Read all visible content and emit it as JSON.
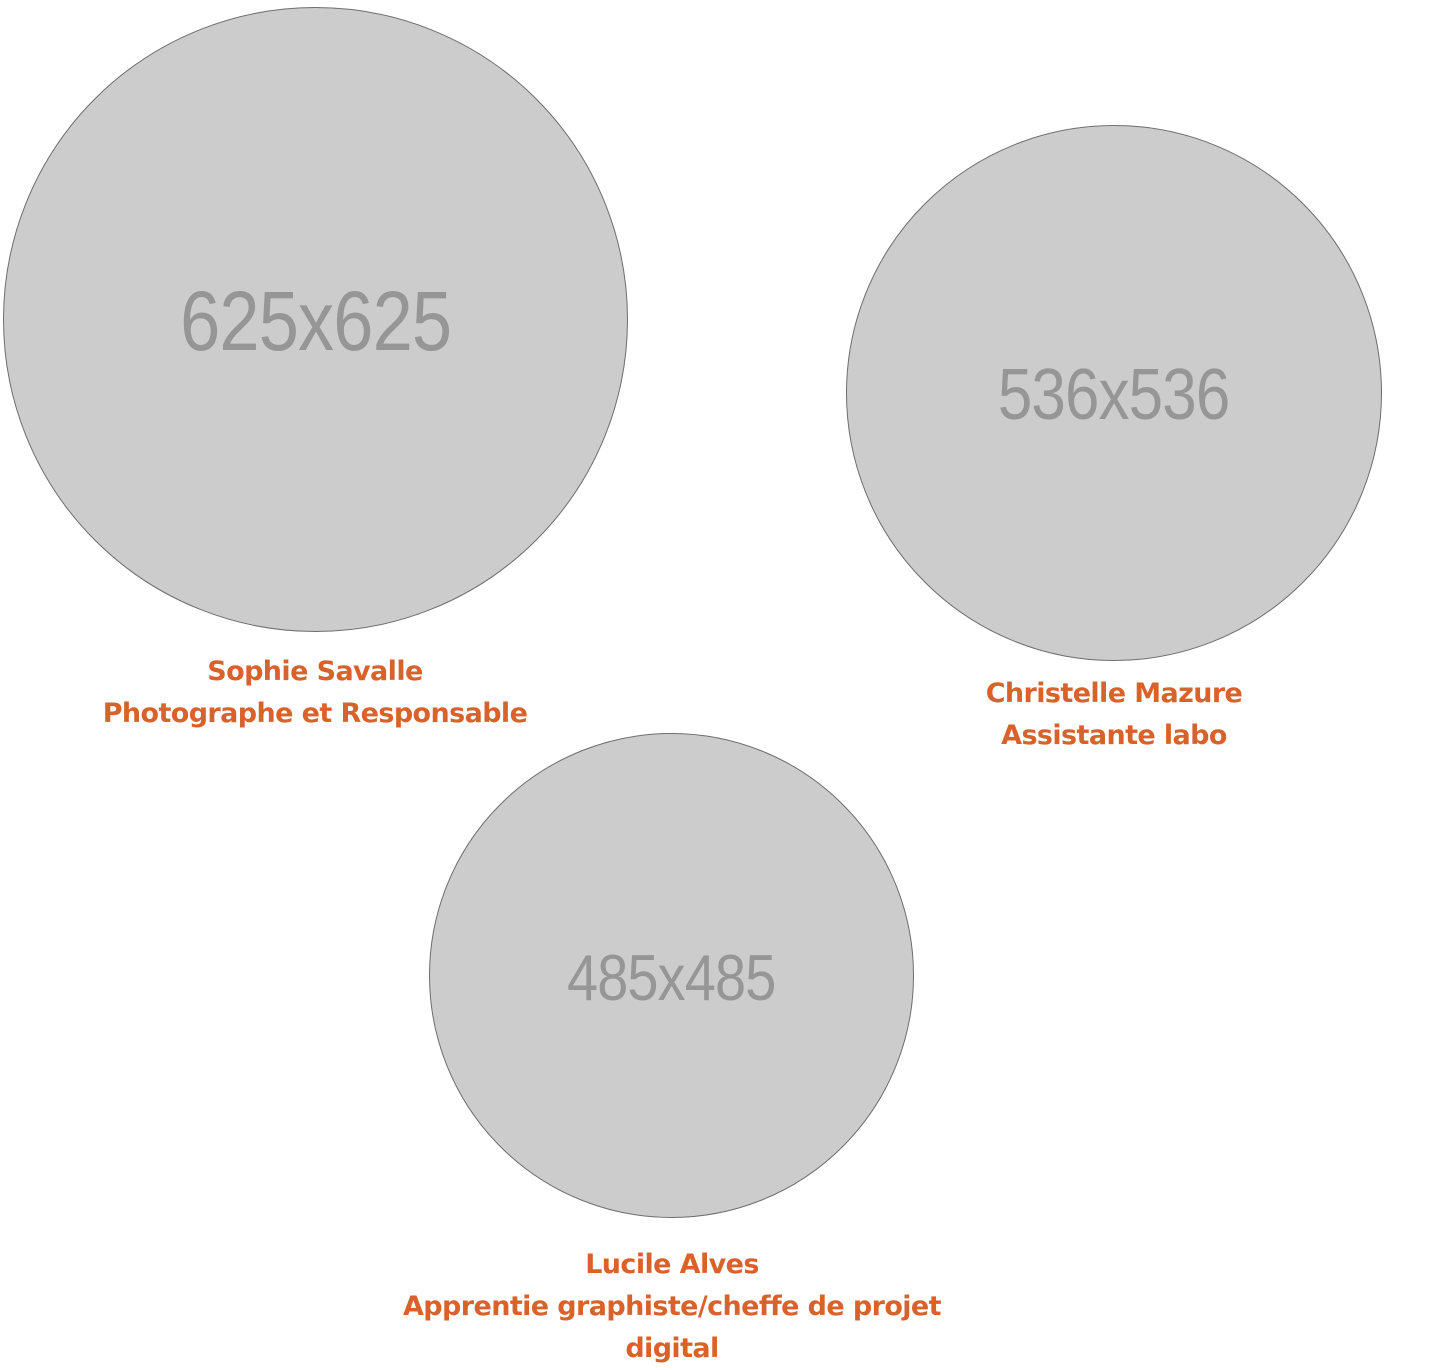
{
  "colors": {
    "caption": "#d9622b",
    "placeholder_fill": "#cccccc",
    "placeholder_text": "#969696"
  },
  "team": [
    {
      "photo_placeholder": "625x625",
      "name": "Sophie Savalle",
      "role": "Photographe et Responsable"
    },
    {
      "photo_placeholder": "536x536",
      "name": "Christelle Mazure",
      "role": "Assistante labo"
    },
    {
      "photo_placeholder": "485x485",
      "name": "Lucile Alves",
      "role_line1": "Apprentie graphiste/cheffe de projet",
      "role_line2": "digital"
    }
  ]
}
